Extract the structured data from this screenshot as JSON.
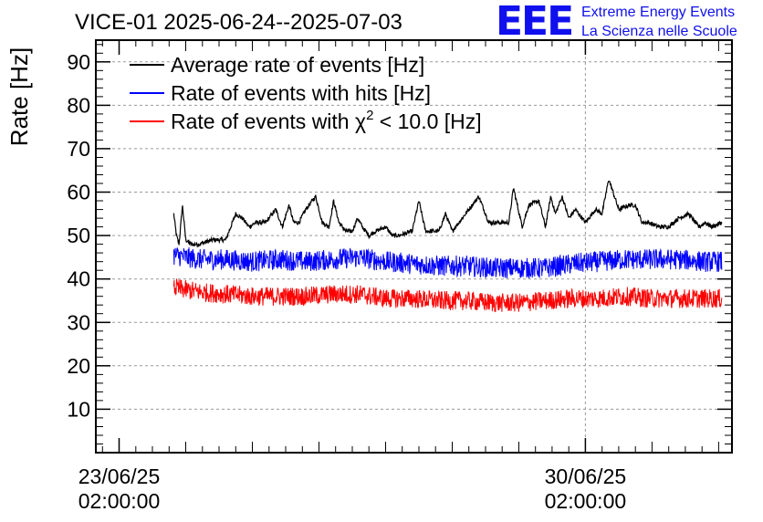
{
  "chart_data": {
    "type": "line",
    "title": "VICE-01 2025-06-24--2025-07-03",
    "ylabel": "Rate [Hz]",
    "ylim": [
      0,
      95
    ],
    "yticks": [
      10,
      20,
      30,
      40,
      50,
      60,
      70,
      80,
      90
    ],
    "xlim_days": [
      -0.35,
      9.2
    ],
    "xticks": [
      {
        "day": 0,
        "date": "23/06/25",
        "time": "02:00:00"
      },
      {
        "day": 7,
        "date": "30/06/25",
        "time": "02:00:00"
      }
    ],
    "grid": true,
    "legend": {
      "position": "top-left",
      "entries": [
        {
          "prefix": "Average rate of events [Hz]",
          "sup": "",
          "suffix": "",
          "color": "#000000"
        },
        {
          "prefix": "Rate of events with hits [Hz]",
          "sup": "",
          "suffix": "",
          "color": "#0000ff"
        },
        {
          "prefix": "Rate of events with χ",
          "sup": "2",
          "suffix": " < 10.0 [Hz]",
          "color": "#ff0000"
        }
      ]
    },
    "series": [
      {
        "name": "Average rate of events [Hz]",
        "color": "#000000",
        "noise": 0.5,
        "x": [
          0.82,
          0.86,
          0.9,
          0.95,
          1.0,
          1.08,
          1.2,
          1.4,
          1.6,
          1.75,
          1.85,
          1.95,
          2.05,
          2.2,
          2.35,
          2.45,
          2.55,
          2.62,
          2.7,
          2.8,
          2.95,
          3.05,
          3.15,
          3.22,
          3.3,
          3.4,
          3.5,
          3.58,
          3.65,
          3.75,
          3.85,
          4.0,
          4.1,
          4.2,
          4.4,
          4.5,
          4.6,
          4.7,
          4.8,
          4.85,
          4.9,
          5.0,
          5.2,
          5.4,
          5.55,
          5.7,
          5.85,
          5.92,
          6.05,
          6.15,
          6.3,
          6.4,
          6.48,
          6.55,
          6.65,
          6.75,
          6.85,
          7.0,
          7.15,
          7.25,
          7.35,
          7.5,
          7.65,
          7.75,
          7.85,
          7.95,
          8.1,
          8.25,
          8.4,
          8.55,
          8.7,
          8.8,
          8.9,
          9.05
        ],
        "y": [
          55,
          50,
          48,
          57,
          49,
          48,
          48,
          49,
          49,
          55,
          54,
          52,
          53,
          53,
          56,
          52,
          57,
          53,
          53,
          56,
          59,
          53,
          52,
          58,
          53,
          51,
          51,
          54,
          52,
          50,
          51,
          52,
          50,
          50,
          51,
          58,
          51,
          51,
          51,
          53,
          55,
          51,
          55,
          59,
          53,
          53,
          53,
          61,
          52,
          57,
          58,
          52,
          59,
          55,
          59,
          54,
          56,
          53,
          56,
          55,
          63,
          56,
          57,
          57,
          53,
          53,
          52,
          52,
          54,
          55,
          52,
          53,
          52,
          53
        ]
      },
      {
        "name": "Rate of events with hits [Hz]",
        "color": "#0000ff",
        "noise": 2.4,
        "x": [
          0.82,
          1.2,
          1.6,
          2.0,
          2.4,
          2.8,
          3.2,
          3.6,
          4.0,
          4.4,
          4.8,
          5.2,
          5.6,
          6.0,
          6.4,
          6.8,
          7.2,
          7.6,
          8.0,
          8.4,
          8.8,
          9.05
        ],
        "y": [
          45.5,
          44.5,
          44.5,
          44,
          44.5,
          44,
          44.5,
          45,
          44,
          43.5,
          43,
          43,
          42.5,
          42.5,
          42.5,
          43.5,
          44,
          44.5,
          44.5,
          44.5,
          44,
          44
        ]
      },
      {
        "name": "Rate of events with χ² < 10.0 [Hz]",
        "color": "#ff0000",
        "noise": 2.2,
        "x": [
          0.82,
          1.2,
          1.6,
          2.0,
          2.4,
          2.8,
          3.2,
          3.6,
          4.0,
          4.4,
          4.8,
          5.2,
          5.6,
          6.0,
          6.4,
          6.8,
          7.2,
          7.6,
          8.0,
          8.4,
          8.8,
          9.05
        ],
        "y": [
          38,
          37,
          36.5,
          36,
          36,
          36,
          36.5,
          36.5,
          35.5,
          35.5,
          35,
          35,
          34.5,
          34.5,
          35,
          35.5,
          35.5,
          36,
          35.5,
          35.5,
          35.5,
          35.5
        ]
      }
    ]
  },
  "logo": {
    "text": "EEE",
    "line1": "Extreme Energy Events",
    "line2": "La Scienza nelle Scuole",
    "color": "#1010ee"
  }
}
